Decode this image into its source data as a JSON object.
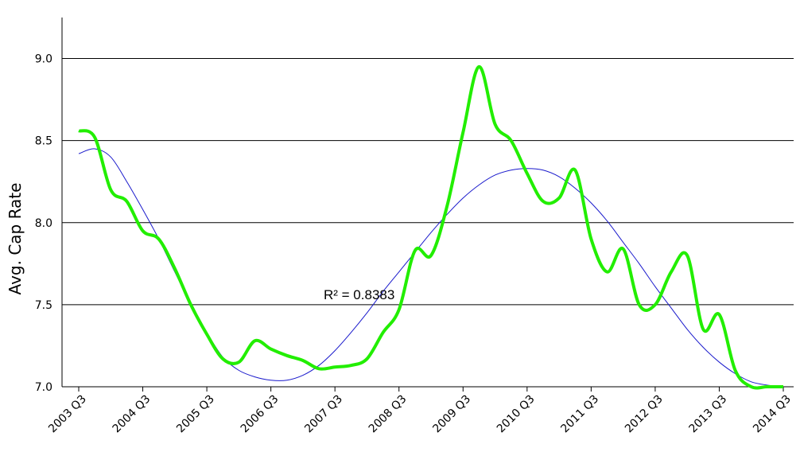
{
  "chart_data": {
    "type": "line",
    "y_label": "Avg. Cap Rate",
    "annotation": "R² = 0.8383",
    "categories": [
      "2003 Q3",
      null,
      null,
      null,
      "2004 Q3",
      null,
      null,
      null,
      "2005 Q3",
      null,
      null,
      null,
      "2006 Q3",
      null,
      null,
      null,
      "2007 Q3",
      null,
      null,
      null,
      "2008 Q3",
      null,
      null,
      null,
      "2009 Q3",
      null,
      null,
      null,
      "2010 Q3",
      null,
      null,
      null,
      "2011 Q3",
      null,
      null,
      null,
      "2012 Q3",
      null,
      null,
      null,
      "2013 Q3",
      null,
      null,
      null,
      "2014 Q3"
    ],
    "series": [
      {
        "color": "#22ee00",
        "width": 4,
        "values": [
          8.56,
          8.52,
          8.2,
          8.13,
          7.95,
          7.9,
          7.72,
          7.5,
          7.32,
          7.17,
          7.15,
          7.28,
          7.23,
          7.19,
          7.16,
          7.11,
          7.12,
          7.13,
          7.17,
          7.33,
          7.47,
          7.83,
          7.8,
          8.1,
          8.55,
          8.95,
          8.6,
          8.5,
          8.3,
          8.13,
          8.15,
          8.32,
          7.9,
          7.7,
          7.84,
          7.5,
          7.5,
          7.7,
          7.8,
          7.35,
          7.44,
          7.1,
          7.0,
          7.0,
          7.0
        ]
      },
      {
        "color": "#1a1acc",
        "width": 1,
        "values": [
          8.42,
          8.45,
          8.4,
          8.25,
          8.08,
          7.9,
          7.7,
          7.5,
          7.33,
          7.18,
          7.1,
          7.06,
          7.04,
          7.04,
          7.07,
          7.13,
          7.22,
          7.33,
          7.45,
          7.58,
          7.7,
          7.82,
          7.94,
          8.05,
          8.15,
          8.23,
          8.29,
          8.32,
          8.33,
          8.32,
          8.28,
          8.21,
          8.12,
          8.01,
          7.88,
          7.75,
          7.61,
          7.48,
          7.35,
          7.24,
          7.15,
          7.08,
          7.03,
          7.01,
          7.0
        ]
      }
    ],
    "ylim": [
      7.0,
      9.25
    ],
    "yticks": [
      {
        "value": 7,
        "label": "7.0"
      },
      {
        "value": 7.5,
        "label": "7.5"
      },
      {
        "value": 8,
        "label": "8.0"
      },
      {
        "value": 8.5,
        "label": "8.5"
      },
      {
        "value": 9,
        "label": "9.0"
      }
    ],
    "grid": true
  }
}
